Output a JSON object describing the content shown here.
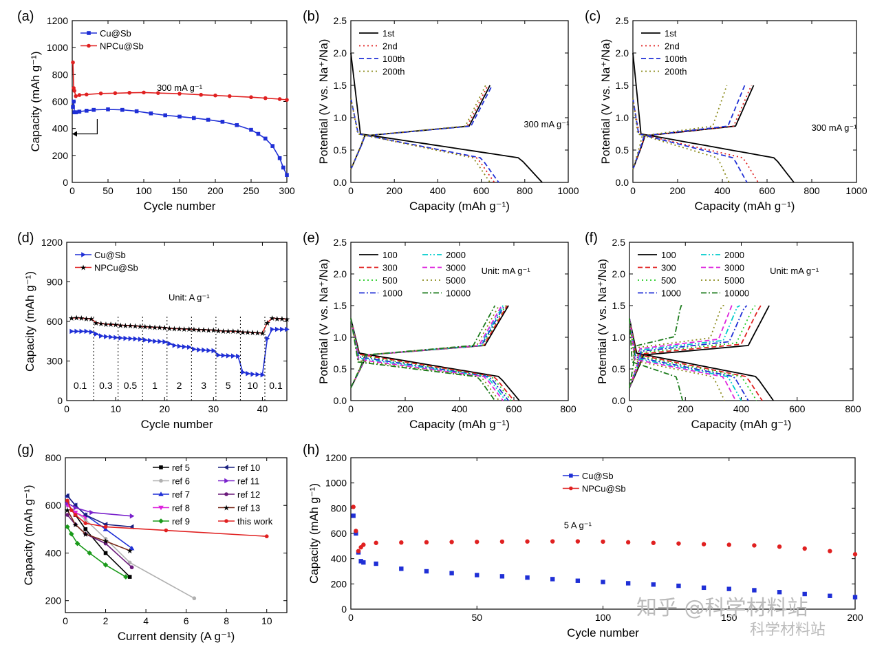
{
  "chart_data": [
    {
      "id": "a",
      "panel_label": "(a)",
      "type": "line",
      "xlabel": "Cycle number",
      "ylabel": "Capacity (mAh g⁻¹)",
      "xlim": [
        0,
        300
      ],
      "ylim": [
        0,
        1200
      ],
      "xticks": [
        0,
        50,
        100,
        150,
        200,
        250,
        300
      ],
      "yticks": [
        0,
        200,
        400,
        600,
        800,
        1000,
        1200
      ],
      "annotations": [
        {
          "text": "300 mA g⁻¹",
          "x": 150,
          "y": 680
        }
      ],
      "legend": "top-left",
      "arrow": {
        "from": [
          35,
          470
        ],
        "corner": [
          35,
          360
        ],
        "to": [
          0,
          360
        ]
      },
      "series": [
        {
          "name": "Cu@Sb",
          "color": "#1f2fd6",
          "marker": "square",
          "x": [
            1,
            2,
            3,
            5,
            10,
            20,
            30,
            50,
            70,
            90,
            110,
            130,
            150,
            170,
            190,
            210,
            230,
            250,
            260,
            270,
            280,
            290,
            295,
            300
          ],
          "y": [
            560,
            600,
            520,
            520,
            525,
            532,
            538,
            542,
            538,
            528,
            512,
            498,
            488,
            478,
            465,
            450,
            425,
            390,
            360,
            325,
            270,
            180,
            110,
            55
          ]
        },
        {
          "name": "NPCu@Sb",
          "color": "#e02020",
          "marker": "circle",
          "x": [
            1,
            2,
            3,
            5,
            10,
            20,
            40,
            60,
            80,
            100,
            120,
            150,
            180,
            200,
            220,
            250,
            270,
            290,
            300
          ],
          "y": [
            890,
            700,
            680,
            640,
            648,
            652,
            660,
            662,
            665,
            667,
            663,
            658,
            650,
            645,
            640,
            632,
            625,
            618,
            612
          ]
        }
      ]
    },
    {
      "id": "b",
      "panel_label": "(b)",
      "type": "line",
      "xlabel": "Capacity (mAh g⁻¹)",
      "ylabel": "Potential (V vs. Na⁺/Na)",
      "xlim": [
        0,
        1000
      ],
      "ylim": [
        0,
        2.5
      ],
      "xticks": [
        0,
        200,
        400,
        600,
        800,
        1000
      ],
      "yticks": [
        0.0,
        0.5,
        1.0,
        1.5,
        2.0,
        2.5
      ],
      "annotations": [
        {
          "text": "300 mA g⁻¹",
          "x": 900,
          "y": 0.85
        }
      ],
      "legend": "top-left",
      "series": [
        {
          "name": "1st",
          "color": "#000000",
          "dash": "solid",
          "end_capacity": 880,
          "charge_end": 640
        },
        {
          "name": "2nd",
          "color": "#e02020",
          "dash": "dot",
          "end_capacity": 660,
          "charge_end": 630
        },
        {
          "name": "100th",
          "color": "#1f2fd6",
          "dash": "dash",
          "end_capacity": 680,
          "charge_end": 650
        },
        {
          "name": "200th",
          "color": "#8a8a1a",
          "dash": "dot",
          "end_capacity": 640,
          "charge_end": 620
        }
      ]
    },
    {
      "id": "c",
      "panel_label": "(c)",
      "type": "line",
      "xlabel": "Capacity (mAh g⁻¹)",
      "ylabel": "Potential (V vs. Na⁺/Na)",
      "xlim": [
        0,
        1000
      ],
      "ylim": [
        0,
        2.5
      ],
      "xticks": [
        0,
        200,
        400,
        600,
        800,
        1000
      ],
      "yticks": [
        0.0,
        0.5,
        1.0,
        1.5,
        2.0,
        2.5
      ],
      "annotations": [
        {
          "text": "300 mA g⁻¹",
          "x": 900,
          "y": 0.8
        }
      ],
      "legend": "top-left",
      "series": [
        {
          "name": "1st",
          "color": "#000000",
          "dash": "solid",
          "end_capacity": 720,
          "charge_end": 540
        },
        {
          "name": "2nd",
          "color": "#e02020",
          "dash": "dot",
          "end_capacity": 560,
          "charge_end": 530
        },
        {
          "name": "100th",
          "color": "#1f2fd6",
          "dash": "dash",
          "end_capacity": 510,
          "charge_end": 500
        },
        {
          "name": "200th",
          "color": "#8a8a1a",
          "dash": "dot",
          "end_capacity": 430,
          "charge_end": 420
        }
      ]
    },
    {
      "id": "d",
      "panel_label": "(d)",
      "type": "line",
      "xlabel": "Cycle number",
      "ylabel": "Capacity (mAh g⁻¹)",
      "xlim": [
        0,
        45
      ],
      "ylim": [
        0,
        1200
      ],
      "xticks": [
        0,
        10,
        20,
        30,
        40
      ],
      "yticks": [
        0,
        300,
        600,
        900,
        1200
      ],
      "annotations": [
        {
          "text": "Unit: A g⁻¹",
          "x": 25,
          "y": 760
        }
      ],
      "rate_labels": [
        "0.1",
        "0.3",
        "0.5",
        "1",
        "2",
        "3",
        "5",
        "10",
        "0.1"
      ],
      "rate_bounds": [
        0,
        5.5,
        10.5,
        15.5,
        20.5,
        25.5,
        30.5,
        35.5,
        40.5,
        45
      ],
      "legend": "top-left",
      "series": [
        {
          "name": "Cu@Sb",
          "color": "#1f2fd6",
          "marker": "triangle-right",
          "x": [
            1,
            2,
            3,
            4,
            5,
            6,
            7,
            8,
            9,
            10,
            11,
            12,
            13,
            14,
            15,
            16,
            17,
            18,
            19,
            20,
            21,
            22,
            23,
            24,
            25,
            26,
            27,
            28,
            29,
            30,
            31,
            32,
            33,
            34,
            35,
            36,
            37,
            38,
            39,
            40,
            41,
            42,
            43,
            44,
            45
          ],
          "y": [
            525,
            525,
            525,
            525,
            520,
            505,
            490,
            485,
            482,
            478,
            475,
            472,
            470,
            468,
            465,
            460,
            455,
            450,
            448,
            445,
            432,
            418,
            412,
            408,
            405,
            390,
            385,
            383,
            380,
            378,
            345,
            342,
            340,
            338,
            336,
            215,
            205,
            200,
            198,
            195,
            470,
            540,
            540,
            540,
            540
          ]
        },
        {
          "name": "NPCu@Sb",
          "color": "#e02020",
          "marker": "star",
          "x": [
            1,
            2,
            3,
            4,
            5,
            6,
            7,
            8,
            9,
            10,
            11,
            12,
            13,
            14,
            15,
            16,
            17,
            18,
            19,
            20,
            21,
            22,
            23,
            24,
            25,
            26,
            27,
            28,
            29,
            30,
            31,
            32,
            33,
            34,
            35,
            36,
            37,
            38,
            39,
            40,
            41,
            42,
            43,
            44,
            45
          ],
          "y": [
            625,
            628,
            625,
            622,
            620,
            590,
            585,
            580,
            578,
            576,
            572,
            570,
            568,
            566,
            564,
            560,
            558,
            556,
            555,
            553,
            548,
            546,
            545,
            543,
            542,
            540,
            538,
            537,
            536,
            535,
            530,
            528,
            527,
            526,
            525,
            520,
            518,
            516,
            514,
            512,
            590,
            625,
            622,
            620,
            618
          ]
        }
      ]
    },
    {
      "id": "e",
      "panel_label": "(e)",
      "type": "line",
      "xlabel": "Capacity (mAh g⁻¹)",
      "ylabel": "Potential (V vs. Na⁺/Na)",
      "xlim": [
        0,
        800
      ],
      "ylim": [
        0,
        2.5
      ],
      "xticks": [
        0,
        200,
        400,
        600,
        800
      ],
      "yticks": [
        0.0,
        0.5,
        1.0,
        1.5,
        2.0,
        2.5
      ],
      "annotations": [
        {
          "text": "Unit: mA g⁻¹",
          "x": 570,
          "y": 2.0
        }
      ],
      "legend": "top-left",
      "series": [
        {
          "name": "100",
          "color": "#000000",
          "dash": "solid",
          "end_capacity": 620,
          "charge_end": 580
        },
        {
          "name": "300",
          "color": "#e02020",
          "dash": "dash",
          "end_capacity": 600,
          "charge_end": 575
        },
        {
          "name": "500",
          "color": "#22cc22",
          "dash": "dot",
          "end_capacity": 590,
          "charge_end": 570
        },
        {
          "name": "1000",
          "color": "#1f2fd6",
          "dash": "dashdot",
          "end_capacity": 580,
          "charge_end": 565
        },
        {
          "name": "2000",
          "color": "#00cccc",
          "dash": "dashdotdot",
          "end_capacity": 570,
          "charge_end": 560
        },
        {
          "name": "3000",
          "color": "#dd22dd",
          "dash": "dash",
          "end_capacity": 560,
          "charge_end": 555
        },
        {
          "name": "5000",
          "color": "#8a8a1a",
          "dash": "dot",
          "end_capacity": 545,
          "charge_end": 545
        },
        {
          "name": "10000",
          "color": "#1a7a1a",
          "dash": "dashdot",
          "end_capacity": 530,
          "charge_end": 530
        }
      ]
    },
    {
      "id": "f",
      "panel_label": "(f)",
      "type": "line",
      "xlabel": "Capacity (mAh g⁻¹)",
      "ylabel": "Potential (V vs. Na⁺/Na)",
      "xlim": [
        0,
        800
      ],
      "ylim": [
        0,
        2.5
      ],
      "xticks": [
        0,
        200,
        400,
        600,
        800
      ],
      "yticks": [
        0.0,
        0.5,
        1.0,
        1.5,
        2.0,
        2.5
      ],
      "annotations": [
        {
          "text": "Unit: mA g⁻¹",
          "x": 590,
          "y": 2.0
        }
      ],
      "legend": "top-left",
      "series": [
        {
          "name": "100",
          "color": "#000000",
          "dash": "solid",
          "end_capacity": 515,
          "charge_end": 500
        },
        {
          "name": "300",
          "color": "#e02020",
          "dash": "dash",
          "end_capacity": 475,
          "charge_end": 470
        },
        {
          "name": "500",
          "color": "#22cc22",
          "dash": "dot",
          "end_capacity": 455,
          "charge_end": 450
        },
        {
          "name": "1000",
          "color": "#1f2fd6",
          "dash": "dashdot",
          "end_capacity": 425,
          "charge_end": 420
        },
        {
          "name": "2000",
          "color": "#00cccc",
          "dash": "dashdotdot",
          "end_capacity": 400,
          "charge_end": 395
        },
        {
          "name": "3000",
          "color": "#dd22dd",
          "dash": "dash",
          "end_capacity": 380,
          "charge_end": 375
        },
        {
          "name": "5000",
          "color": "#8a8a1a",
          "dash": "dot",
          "end_capacity": 340,
          "charge_end": 340
        },
        {
          "name": "10000",
          "color": "#1a7a1a",
          "dash": "dashdot",
          "end_capacity": 190,
          "charge_end": 190
        }
      ]
    },
    {
      "id": "g",
      "panel_label": "(g)",
      "type": "line",
      "xlabel": "Current density (A g⁻¹)",
      "ylabel": "Capacity (mAh g⁻¹)",
      "xlim": [
        0,
        11
      ],
      "ylim": [
        150,
        800
      ],
      "xticks": [
        0,
        2,
        4,
        6,
        8,
        10
      ],
      "yticks": [
        200,
        400,
        600,
        800
      ],
      "legend": "top-right",
      "series": [
        {
          "name": "ref 5",
          "color": "#000000",
          "marker": "square",
          "x": [
            0.1,
            0.5,
            1,
            2,
            3.2
          ],
          "y": [
            610,
            560,
            500,
            400,
            300
          ]
        },
        {
          "name": "ref 6",
          "color": "#b0b0b0",
          "marker": "circle",
          "x": [
            0.1,
            1,
            2,
            3.2,
            6.4
          ],
          "y": [
            600,
            540,
            460,
            360,
            210
          ]
        },
        {
          "name": "ref 7",
          "color": "#1f2fd6",
          "marker": "triangle",
          "x": [
            0.1,
            0.5,
            1,
            2,
            3.3
          ],
          "y": [
            640,
            600,
            560,
            500,
            420
          ]
        },
        {
          "name": "ref 8",
          "color": "#dd22dd",
          "marker": "triangle-down",
          "x": [
            0.1,
            0.5,
            1
          ],
          "y": [
            600,
            570,
            550
          ]
        },
        {
          "name": "ref 9",
          "color": "#1a9a1a",
          "marker": "diamond",
          "x": [
            0.1,
            0.3,
            0.6,
            1.2,
            2,
            3
          ],
          "y": [
            510,
            480,
            440,
            400,
            350,
            300
          ]
        },
        {
          "name": "ref 10",
          "color": "#1a2080",
          "marker": "triangle-left",
          "x": [
            0.1,
            0.5,
            1,
            2,
            3.3
          ],
          "y": [
            640,
            600,
            560,
            520,
            510
          ]
        },
        {
          "name": "ref 11",
          "color": "#7a22cc",
          "marker": "triangle-right",
          "x": [
            0.1,
            0.5,
            1.3,
            3.3
          ],
          "y": [
            610,
            590,
            570,
            555
          ]
        },
        {
          "name": "ref 12",
          "color": "#6a1a7a",
          "marker": "circle",
          "x": [
            0.1,
            0.5,
            1,
            2,
            3.3
          ],
          "y": [
            560,
            520,
            480,
            440,
            340
          ]
        },
        {
          "name": "ref 13",
          "color": "#7a2a1a",
          "marker": "star",
          "x": [
            0.1,
            0.5,
            1,
            2,
            3.2
          ],
          "y": [
            580,
            520,
            480,
            450,
            410
          ]
        },
        {
          "name": "this work",
          "color": "#e02020",
          "marker": "circle",
          "x": [
            0.1,
            0.3,
            0.5,
            1,
            2,
            5,
            10
          ],
          "y": [
            620,
            580,
            560,
            525,
            510,
            495,
            470
          ]
        }
      ]
    },
    {
      "id": "h",
      "panel_label": "(h)",
      "type": "scatter",
      "xlabel": "Cycle number",
      "ylabel": "Capacity (mAh g⁻¹)",
      "xlim": [
        0,
        200
      ],
      "ylim": [
        0,
        1200
      ],
      "xticks": [
        0,
        50,
        100,
        150,
        200
      ],
      "yticks": [
        0,
        200,
        400,
        600,
        800,
        1000,
        1200
      ],
      "annotations": [
        {
          "text": "5 A g⁻¹",
          "x": 90,
          "y": 640
        }
      ],
      "legend": "top-center",
      "series": [
        {
          "name": "Cu@Sb",
          "color": "#1f2fd6",
          "marker": "square",
          "x": [
            1,
            2,
            3,
            4,
            5,
            10,
            20,
            30,
            40,
            50,
            60,
            70,
            80,
            90,
            100,
            110,
            120,
            130,
            140,
            150,
            160,
            170,
            180,
            190,
            200
          ],
          "y": [
            740,
            600,
            450,
            380,
            370,
            360,
            320,
            300,
            285,
            270,
            260,
            250,
            238,
            225,
            215,
            205,
            195,
            185,
            170,
            160,
            150,
            135,
            120,
            105,
            95
          ]
        },
        {
          "name": "NPCu@Sb",
          "color": "#e02020",
          "marker": "circle",
          "x": [
            1,
            2,
            3,
            4,
            5,
            10,
            20,
            30,
            40,
            50,
            60,
            70,
            80,
            90,
            100,
            110,
            120,
            130,
            140,
            150,
            160,
            170,
            180,
            190,
            200
          ],
          "y": [
            810,
            620,
            460,
            490,
            510,
            525,
            528,
            530,
            532,
            533,
            535,
            536,
            537,
            537,
            535,
            530,
            525,
            520,
            515,
            510,
            505,
            495,
            480,
            460,
            435
          ]
        }
      ]
    }
  ],
  "watermark": {
    "line1": "知乎 @科学材料站",
    "line2": "科学材料站"
  }
}
